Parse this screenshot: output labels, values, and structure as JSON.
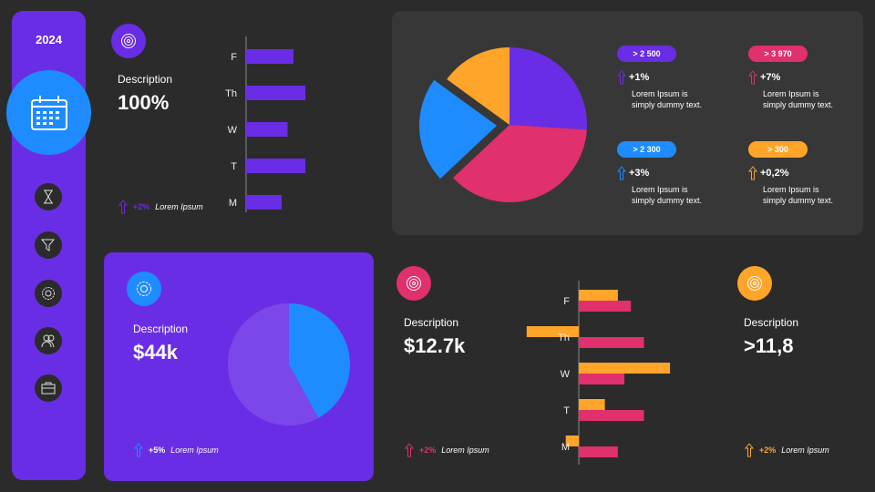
{
  "colors": {
    "purple": "#6a2de6",
    "blue": "#1e8cff",
    "pink": "#e0306e",
    "orange": "#ffa52a",
    "light_purple": "#7b47ea"
  },
  "sidebar": {
    "year": "2024",
    "main_icon": "calendar-icon",
    "icons": [
      "hourglass-icon",
      "filter-icon",
      "gear-icon",
      "users-icon",
      "briefcase-icon"
    ]
  },
  "card1": {
    "icon": "target-icon",
    "description": "Description",
    "value": "100%",
    "change": "+2%",
    "label": "Lorem Ipsum"
  },
  "card2": {
    "icon": "gear-icon",
    "description": "Description",
    "value": "$44k",
    "change": "+5%",
    "label": "Lorem Ipsum"
  },
  "card3": {
    "icon": "target-icon",
    "description": "Description",
    "value": "$12.7k",
    "change": "+2%",
    "label": "Lorem Ipsum"
  },
  "card4": {
    "icon": "target-icon",
    "description": "Description",
    "value": ">11,8",
    "change": "+2%",
    "label": "Lorem Ipsum"
  },
  "stats": [
    {
      "badge": "> 2 500",
      "change": "+1%",
      "text1": "Lorem Ipsum is",
      "text2": "simply  dummy text.",
      "color": "#6a2de6"
    },
    {
      "badge": "> 3 970",
      "change": "+7%",
      "text1": "Lorem Ipsum is",
      "text2": "simply  dummy text.",
      "color": "#e0306e"
    },
    {
      "badge": "> 2 300",
      "change": "+3%",
      "text1": "Lorem Ipsum is",
      "text2": "simply  dummy text.",
      "color": "#1e8cff"
    },
    {
      "badge": "> 300",
      "change": "+0,2%",
      "text1": "Lorem Ipsum is",
      "text2": "simply  dummy text.",
      "color": "#ffa52a"
    }
  ],
  "chart_data": [
    {
      "type": "bar",
      "orientation": "horizontal",
      "categories": [
        "F",
        "Th",
        "W",
        "T",
        "M"
      ],
      "series": [
        {
          "values": [
            4,
            5,
            3.5,
            5,
            3
          ],
          "color": "#6a2de6"
        }
      ]
    },
    {
      "type": "bar",
      "orientation": "horizontal",
      "categories": [
        "F",
        "Th",
        "W",
        "T",
        "M"
      ],
      "series": [
        {
          "values": [
            3,
            -4,
            7,
            2,
            -1
          ],
          "color": "#ffa52a"
        },
        {
          "values": [
            4,
            5,
            3.5,
            5,
            3
          ],
          "color": "#e0306e"
        }
      ]
    },
    {
      "type": "pie",
      "values": [
        26,
        37,
        22,
        15
      ],
      "colors": [
        "#6a2de6",
        "#e0306e",
        "#1e8cff",
        "#ffa52a"
      ],
      "exploded_index": 2
    },
    {
      "type": "pie",
      "values": [
        42,
        58
      ],
      "colors": [
        "#1e8cff",
        "#7b47ea"
      ]
    }
  ]
}
